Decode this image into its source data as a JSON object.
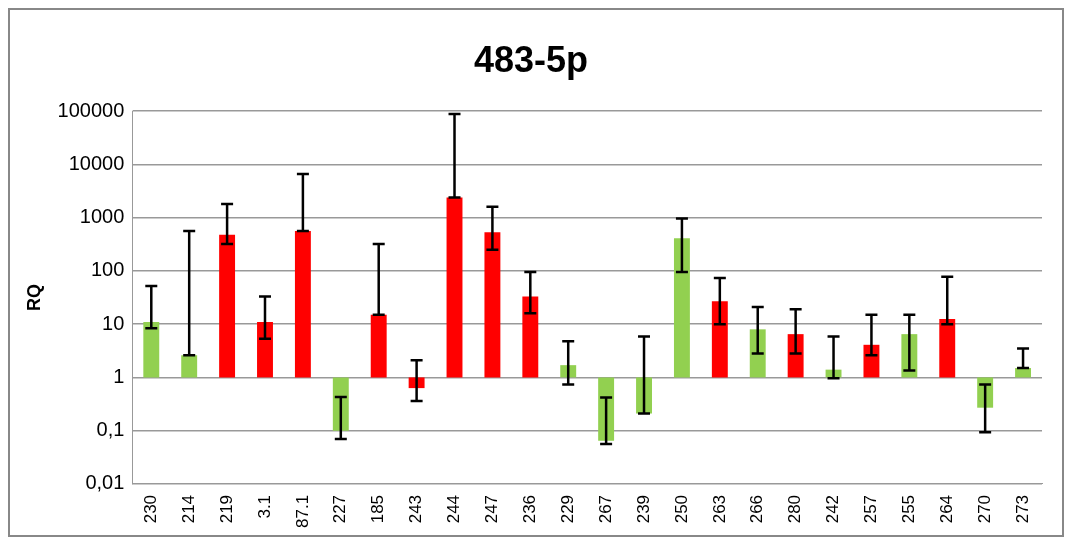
{
  "chart_data": {
    "type": "bar",
    "title": "483-5p",
    "ylabel": "RQ",
    "categories": [
      "230",
      "214",
      "219",
      "3.1",
      "87.1",
      "227",
      "185",
      "243",
      "244",
      "247",
      "236",
      "229",
      "267",
      "239",
      "250",
      "263",
      "266",
      "280",
      "242",
      "257",
      "255",
      "264",
      "270",
      "273"
    ],
    "base": [
      1,
      1,
      1,
      1,
      1,
      1,
      1,
      1,
      1,
      1,
      1,
      1,
      1,
      1,
      1,
      1,
      1,
      1,
      1,
      1,
      1,
      1,
      1,
      1
    ],
    "values": [
      10,
      1.6,
      479,
      10,
      559,
      -0.9,
      14,
      -0.37,
      2399,
      529,
      32,
      0.7,
      -0.935,
      -0.79,
      409,
      26,
      7,
      5.5,
      0.4,
      3.1,
      5.5,
      11.5,
      -0.73,
      0.5
    ],
    "colors": [
      "#92d050",
      "#92d050",
      "#ff0000",
      "#ff0000",
      "#ff0000",
      "#92d050",
      "#ff0000",
      "#ff0000",
      "#ff0000",
      "#ff0000",
      "#ff0000",
      "#92d050",
      "#92d050",
      "#92d050",
      "#92d050",
      "#ff0000",
      "#92d050",
      "#ff0000",
      "#92d050",
      "#ff0000",
      "#92d050",
      "#ff0000",
      "#92d050",
      "#92d050"
    ],
    "errors": [
      [
        8.4,
        52
      ],
      [
        2.6,
        560
      ],
      [
        320,
        1800
      ],
      [
        5.3,
        33
      ],
      [
        560,
        6600
      ],
      [
        0.07,
        0.43
      ],
      [
        15,
        320
      ],
      [
        0.36,
        2.1
      ],
      [
        2400,
        89000
      ],
      [
        250,
        1600
      ],
      [
        16,
        95
      ],
      [
        0.74,
        4.8
      ],
      [
        0.056,
        0.42
      ],
      [
        0.21,
        5.9
      ],
      [
        95,
        970
      ],
      [
        10,
        74
      ],
      [
        2.8,
        21
      ],
      [
        2.8,
        19
      ],
      [
        0.96,
        5.9
      ],
      [
        2.6,
        15
      ],
      [
        1.35,
        15
      ],
      [
        10,
        78
      ],
      [
        0.093,
        0.74
      ],
      [
        1.5,
        3.5
      ]
    ],
    "log": "y",
    "ylim": [
      0.01,
      100000
    ],
    "yticks": [
      {
        "value": 0.01,
        "label": "0,01"
      },
      {
        "value": 0.1,
        "label": "0,1"
      },
      1,
      10,
      100,
      1000,
      10000,
      100000
    ],
    "grid": "y",
    "legend": false
  }
}
